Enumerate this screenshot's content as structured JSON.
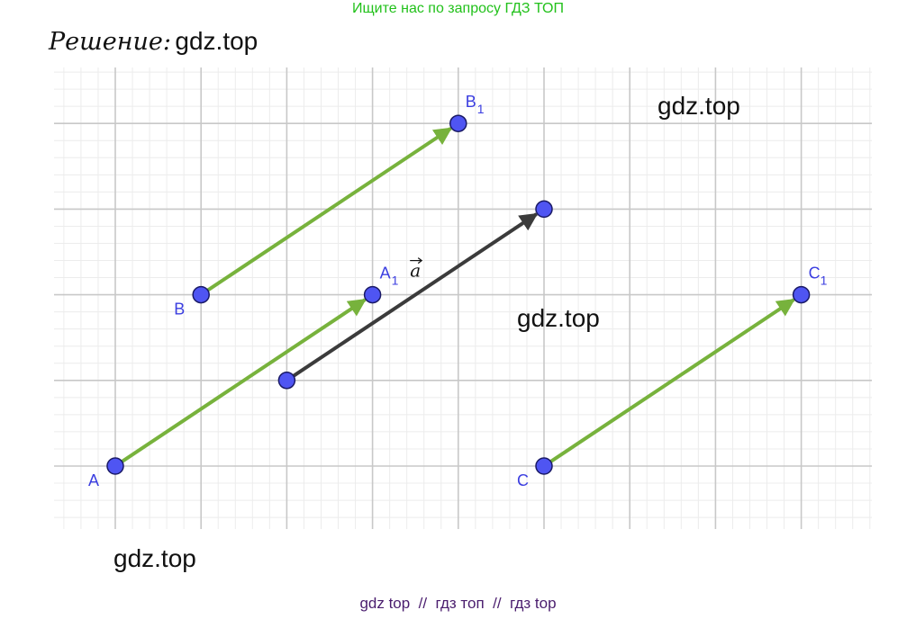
{
  "banner": {
    "text": "Ищите нас по запросу ГДЗ ТОП",
    "color": "#22c11b"
  },
  "solution": {
    "label": "Решение:",
    "watermark": "gdz.top"
  },
  "watermarks": [
    "gdz.top",
    "gdz.top",
    "gdz.top"
  ],
  "footer": {
    "text": "gdz top  //  гдз топ  //  гдз top",
    "color": "#4a1d6e"
  },
  "colors": {
    "point_fill": "#4f55f2",
    "point_stroke": "#1a1a66",
    "label": "#3b3ee0",
    "vector_green": "#77b23c",
    "vector_dark": "#3b3b3b",
    "grid_major": "#c8c8c8",
    "grid_minor": "#ececec"
  },
  "grid": {
    "x_min": 0,
    "x_max": 9,
    "y_min": 0,
    "y_max": 4
  },
  "points": [
    {
      "id": "A",
      "x": 0,
      "y": 0,
      "label": "A",
      "sub": ""
    },
    {
      "id": "A1",
      "x": 3,
      "y": 2,
      "label": "A",
      "sub": "1"
    },
    {
      "id": "B",
      "x": 1,
      "y": 2,
      "label": "B",
      "sub": ""
    },
    {
      "id": "B1",
      "x": 4,
      "y": 4,
      "label": "B",
      "sub": "1"
    },
    {
      "id": "C",
      "x": 5,
      "y": 0,
      "label": "C",
      "sub": ""
    },
    {
      "id": "C1",
      "x": 8,
      "y": 2,
      "label": "C",
      "sub": "1"
    },
    {
      "id": "P",
      "x": 2,
      "y": 1,
      "label": "",
      "sub": ""
    },
    {
      "id": "Q",
      "x": 5,
      "y": 3,
      "label": "",
      "sub": ""
    }
  ],
  "vectors": [
    {
      "from": "A",
      "to": "A1",
      "color": "green"
    },
    {
      "from": "B",
      "to": "B1",
      "color": "green"
    },
    {
      "from": "C",
      "to": "C1",
      "color": "green"
    },
    {
      "from": "P",
      "to": "Q",
      "color": "dark",
      "label": "a"
    }
  ]
}
